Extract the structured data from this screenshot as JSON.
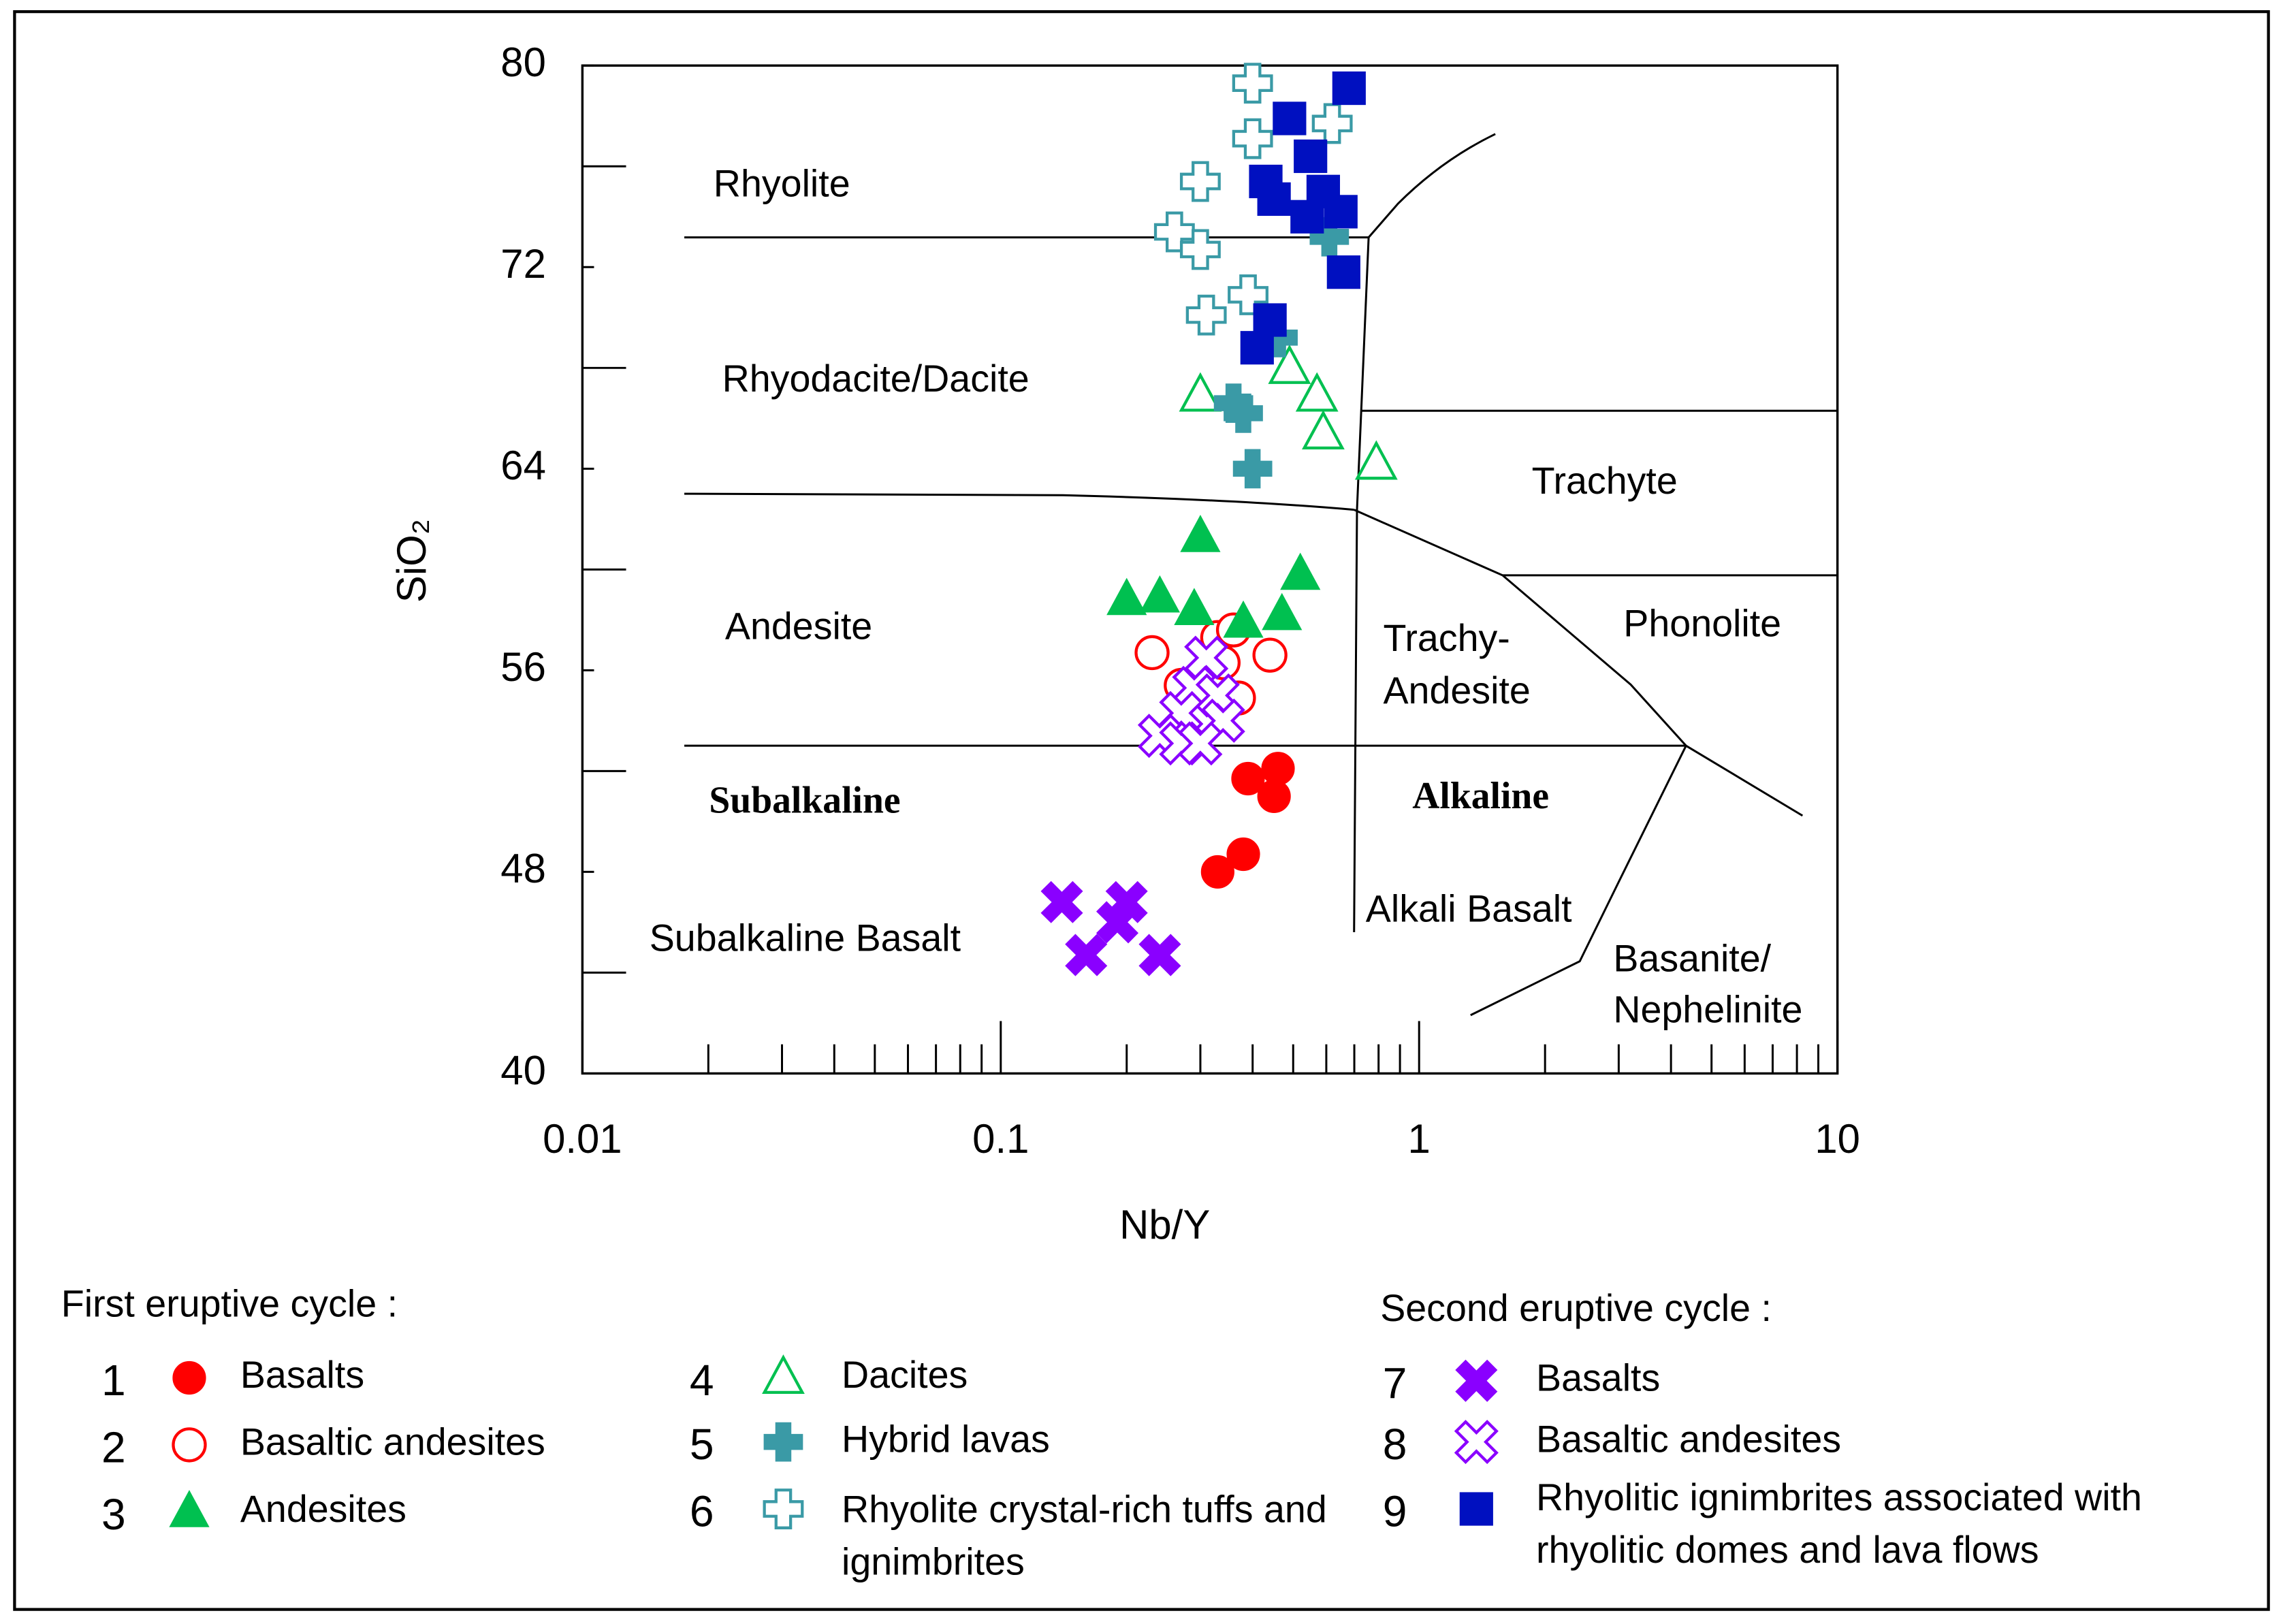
{
  "chart_data": {
    "type": "scatter",
    "xlabel": "Nb/Y",
    "ylabel": "SiO₂",
    "xscale": "log",
    "xlim": [
      0.01,
      10
    ],
    "ylim": [
      40,
      80
    ],
    "xticks": [
      0.01,
      0.1,
      1,
      10
    ],
    "xticks_minor": [
      0.02,
      0.03,
      0.04,
      0.05,
      0.06,
      0.07,
      0.08,
      0.09,
      0.2,
      0.3,
      0.4,
      0.5,
      0.6,
      0.7,
      0.8,
      0.9,
      2,
      3,
      4,
      5,
      6,
      7,
      8,
      9
    ],
    "yticks": [
      40,
      48,
      56,
      64,
      72,
      80
    ],
    "yticks_minor": [
      44,
      52,
      60,
      68,
      76
    ],
    "annotations": [
      "Rhyolite",
      "Rhyodacite/Dacite",
      "Andesite",
      "Subalkaline",
      "Subalkaline Basalt",
      "Trachyte",
      "Phonolite",
      "Trachy-",
      "Andesite",
      "Alkaline",
      "Alkali Basalt",
      "Basanite/",
      "Nephelinite"
    ],
    "legend_groups": [
      "First eruptive cycle :",
      "Second eruptive cycle :"
    ],
    "series": [
      {
        "number": "1",
        "name": "Basalts",
        "color": "#ff0000",
        "marker": "circle",
        "filled": true,
        "x": [
          0.46,
          0.39,
          0.45,
          0.33,
          0.38
        ],
        "y": [
          52.1,
          51.7,
          51.0,
          48.0,
          48.7
        ]
      },
      {
        "number": "2",
        "name": "Basaltic andesites",
        "color": "#ff0000",
        "marker": "circle",
        "filled": false,
        "x": [
          0.23,
          0.33,
          0.36,
          0.44,
          0.27,
          0.37,
          0.34
        ],
        "y": [
          56.7,
          57.3,
          57.6,
          56.6,
          55.4,
          54.9,
          56.3
        ]
      },
      {
        "number": "3",
        "name": "Andesites",
        "color": "#00c050",
        "marker": "triangle",
        "filled": true,
        "x": [
          0.3,
          0.2,
          0.24,
          0.29,
          0.38,
          0.47,
          0.52
        ],
        "y": [
          61.3,
          58.8,
          58.9,
          58.4,
          57.9,
          58.2,
          59.8
        ]
      },
      {
        "number": "4",
        "name": "Dacites",
        "color": "#00c050",
        "marker": "triangle",
        "filled": false,
        "x": [
          0.3,
          0.49,
          0.57,
          0.59,
          0.79
        ],
        "y": [
          66.9,
          68.0,
          66.9,
          65.4,
          64.2
        ]
      },
      {
        "number": "5",
        "name": "Hybrid lavas",
        "color": "#3a9aa6",
        "marker": "plus",
        "filled": true,
        "x": [
          0.36,
          0.38,
          0.4,
          0.46,
          0.61
        ],
        "y": [
          66.6,
          66.2,
          64.0,
          69.2,
          73.2
        ]
      },
      {
        "number": "6",
        "name": "Rhyolite crystal-rich tuffs and ignimbrites",
        "color": "#3a9aa6",
        "marker": "plus",
        "filled": false,
        "x": [
          0.4,
          0.4,
          0.62,
          0.3,
          0.26,
          0.3,
          0.31,
          0.39
        ],
        "y": [
          79.3,
          77.1,
          77.7,
          75.4,
          73.4,
          72.7,
          70.1,
          70.9
        ]
      },
      {
        "number": "7",
        "name": "Basalts",
        "color": "#8a00ff",
        "marker": "x",
        "filled": true,
        "x": [
          0.14,
          0.2,
          0.19,
          0.16,
          0.24
        ],
        "y": [
          46.8,
          46.8,
          46.0,
          44.7,
          44.7
        ]
      },
      {
        "number": "8",
        "name": "Basaltic andesites",
        "color": "#8a00ff",
        "marker": "x",
        "filled": false,
        "x": [
          0.31,
          0.29,
          0.33,
          0.27,
          0.34,
          0.24,
          0.27,
          0.3
        ],
        "y": [
          56.5,
          55.3,
          55.0,
          54.3,
          54.0,
          53.4,
          53.1,
          53.1
        ]
      },
      {
        "number": "9",
        "name": "Rhyolitic ignimbrites associated with rhyolitic domes and lava flows",
        "color": "#0010c0",
        "marker": "square",
        "filled": true,
        "x": [
          0.68,
          0.49,
          0.55,
          0.43,
          0.45,
          0.59,
          0.54,
          0.65,
          0.66,
          0.44,
          0.41
        ],
        "y": [
          79.1,
          77.9,
          76.4,
          75.4,
          74.7,
          75.0,
          74.0,
          74.2,
          71.8,
          69.9,
          68.8
        ]
      }
    ]
  }
}
